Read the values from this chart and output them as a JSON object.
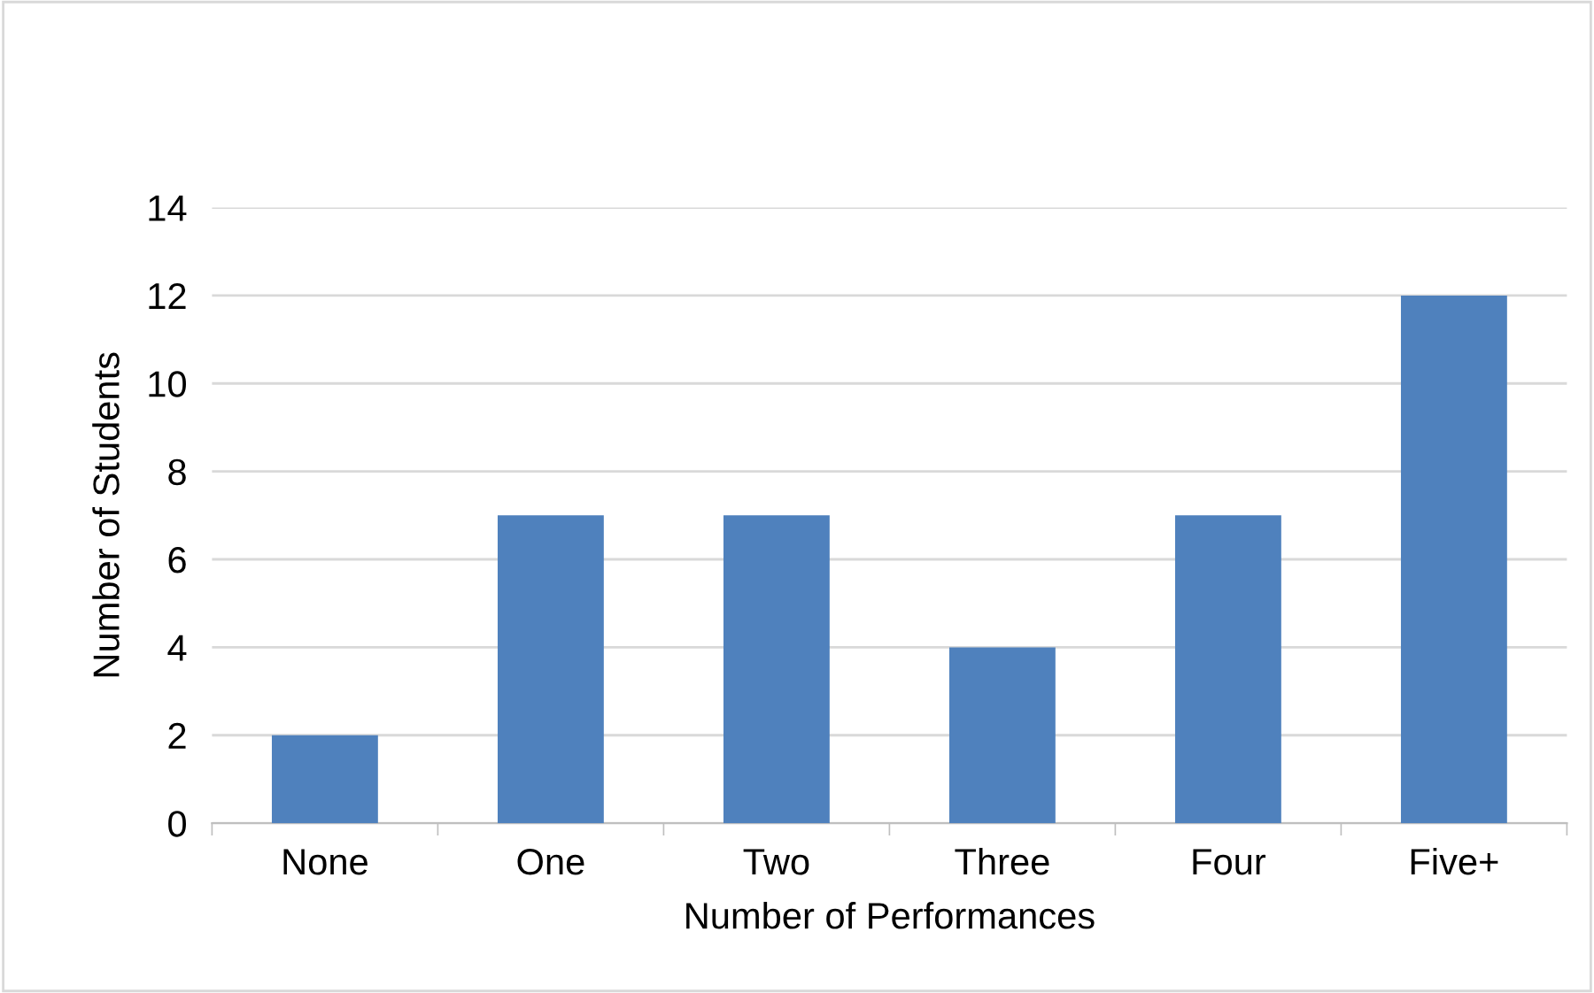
{
  "chart_data": {
    "type": "bar",
    "xlabel": "Number of Performances",
    "ylabel": "Number of Students",
    "categories": [
      "None",
      "One",
      "Two",
      "Three",
      "Four",
      "Five+"
    ],
    "values": [
      2,
      7,
      7,
      4,
      7,
      12
    ],
    "color": "#4f81bd",
    "ylim": [
      0,
      14
    ],
    "yticks": [
      0,
      2,
      4,
      6,
      8,
      10,
      12,
      14
    ],
    "grid": "y",
    "legend": false
  }
}
